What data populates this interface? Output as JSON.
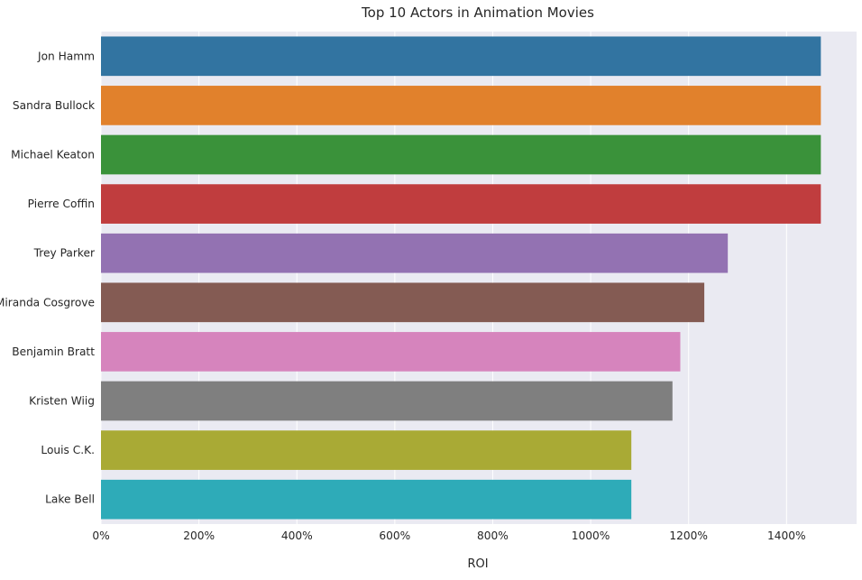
{
  "chart_data": {
    "type": "bar",
    "orientation": "horizontal",
    "title": "Top 10 Actors in Animation Movies",
    "xlabel": "ROI",
    "ylabel": "",
    "categories": [
      "Jon Hamm",
      "Sandra Bullock",
      "Michael Keaton",
      "Pierre Coffin",
      "Trey Parker",
      "Miranda Cosgrove",
      "Benjamin Bratt",
      "Kristen Wiig",
      "Louis C.K.",
      "Lake Bell"
    ],
    "values": [
      1470,
      1470,
      1470,
      1470,
      1280,
      1232,
      1183,
      1167,
      1083,
      1083
    ],
    "xlim": [
      0,
      1543
    ],
    "xticks": [
      0,
      200,
      400,
      600,
      800,
      1000,
      1200,
      1400
    ],
    "xtick_labels": [
      "0%",
      "200%",
      "400%",
      "600%",
      "800%",
      "1000%",
      "1200%",
      "1400%"
    ],
    "grid": true,
    "legend": "none",
    "background_color": "#eaeaf2",
    "colors": [
      "#3274a1",
      "#e1812c",
      "#3a923a",
      "#c03d3e",
      "#9372b2",
      "#845b53",
      "#d684bd",
      "#7f7f7f",
      "#a9aa35",
      "#2eabb8"
    ]
  }
}
